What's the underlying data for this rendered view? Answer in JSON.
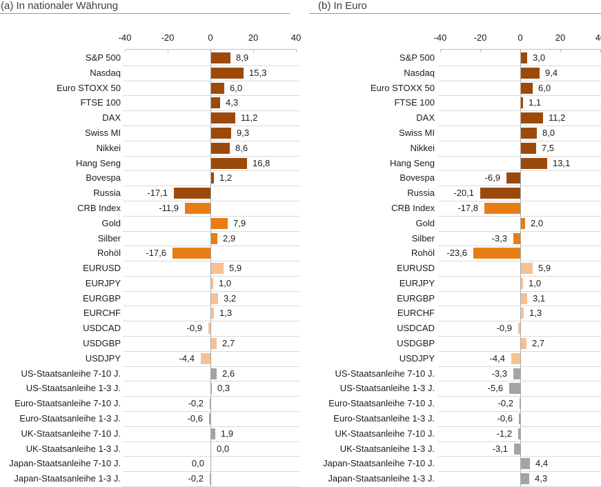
{
  "page": {
    "background": "#FFFFFF"
  },
  "colors": {
    "equity": "#9C4A0C",
    "commodity": "#E87D16",
    "fx": "#F5C193",
    "bond": "#A0A5AA",
    "grid_line": "#D9D9D9",
    "zero_line": "#A6A6A6",
    "axis_line": "#BFBFBF",
    "title_underline": "#B5944C",
    "title_text": "#3C3C3C",
    "label_text": "#1A1A1A"
  },
  "chart_data": {
    "type": "bar",
    "orientation": "horizontal",
    "xlim": [
      -40,
      40
    ],
    "xticks": [
      -40,
      -20,
      0,
      20,
      40
    ],
    "grid": "horizontal row separators, top axis with tick marks, vertical zero line",
    "legend": "none",
    "value_format": "one decimal, comma as decimal separator",
    "categories": [
      "S&P 500",
      "Nasdaq",
      "Euro STOXX 50",
      "FTSE 100",
      "DAX",
      "Swiss MI",
      "Nikkei",
      "Hang Seng",
      "Bovespa",
      "Russia",
      "CRB Index",
      "Gold",
      "Silber",
      "Rohöl",
      "EURUSD",
      "EURJPY",
      "EURGBP",
      "EURCHF",
      "USDCAD",
      "USDGBP",
      "USDJPY",
      "US-Staatsanleihe 7-10 J.",
      "US-Staatsanleihe 1-3 J.",
      "Euro-Staatsanleihe 7-10 J.",
      "Euro-Staatsanleihe 1-3 J.",
      "UK-Staatsanleihe 7-10 J.",
      "UK-Staatsanleihe 1-3 J.",
      "Japan-Staatsanleihe 7-10 J.",
      "Japan-Staatsanleihe 1-3 J."
    ],
    "category_groups": [
      "equity",
      "equity",
      "equity",
      "equity",
      "equity",
      "equity",
      "equity",
      "equity",
      "equity",
      "equity",
      "commodity",
      "commodity",
      "commodity",
      "commodity",
      "fx",
      "fx",
      "fx",
      "fx",
      "fx",
      "fx",
      "fx",
      "bond",
      "bond",
      "bond",
      "bond",
      "bond",
      "bond",
      "bond",
      "bond"
    ],
    "series": [
      {
        "name": "(a) In nationaler Währung",
        "values": [
          8.9,
          15.3,
          6.0,
          4.3,
          11.2,
          9.3,
          8.6,
          16.8,
          1.2,
          -17.1,
          -11.9,
          7.9,
          2.9,
          -17.6,
          5.9,
          1.0,
          3.2,
          1.3,
          -0.9,
          2.7,
          -4.4,
          2.6,
          0.3,
          -0.2,
          -0.6,
          1.9,
          0.0,
          0.0,
          -0.2
        ],
        "labels": [
          "8,9",
          "15,3",
          "6,0",
          "4,3",
          "11,2",
          "9,3",
          "8,6",
          "16,8",
          "1,2",
          "-17,1",
          "-11,9",
          "7,9",
          "2,9",
          "-17,6",
          "5,9",
          "1,0",
          "3,2",
          "1,3",
          "-0,9",
          "2,7",
          "-4,4",
          "2,6",
          "0,3",
          "-0,2",
          "-0,6",
          "1,9",
          "0,0",
          "0,0",
          "-0,2"
        ],
        "label_side_overrides": {
          "27": "left"
        }
      },
      {
        "name": "(b) In Euro",
        "values": [
          3.0,
          9.4,
          6.0,
          1.1,
          11.2,
          8.0,
          7.5,
          13.1,
          -6.9,
          -20.1,
          -17.8,
          2.0,
          -3.3,
          -23.6,
          5.9,
          1.0,
          3.1,
          1.3,
          -0.9,
          2.7,
          -4.4,
          -3.3,
          -5.6,
          -0.2,
          -0.6,
          -1.2,
          -3.1,
          4.4,
          4.3
        ],
        "labels": [
          "3,0",
          "9,4",
          "6,0",
          "1,1",
          "11,2",
          "8,0",
          "7,5",
          "13,1",
          "-6,9",
          "-20,1",
          "-17,8",
          "2,0",
          "-3,3",
          "-23,6",
          "5,9",
          "1,0",
          "3,1",
          "1,3",
          "-0,9",
          "2,7",
          "-4,4",
          "-3,3",
          "-5,6",
          "-0,2",
          "-0,6",
          "-1,2",
          "-3,1",
          "4,4",
          "4,3"
        ],
        "label_side_overrides": {}
      }
    ]
  }
}
